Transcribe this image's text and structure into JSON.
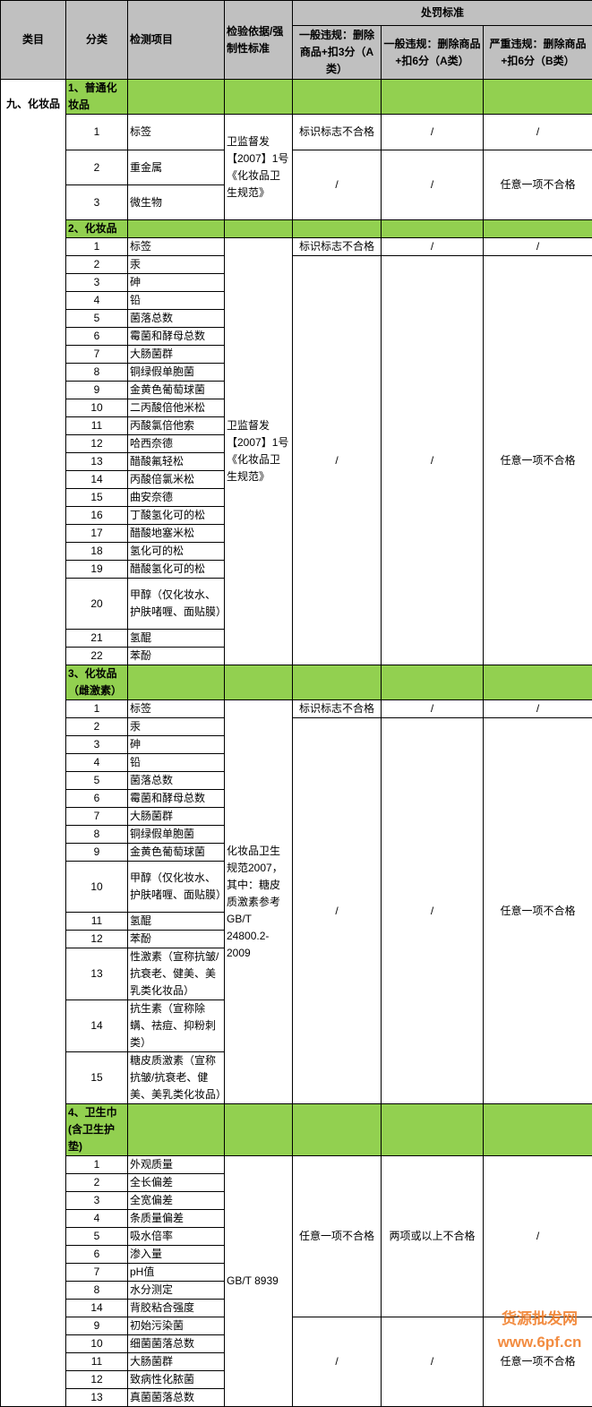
{
  "header": {
    "category": "类目",
    "subcategory": "分类",
    "item": "检测项目",
    "basis": "检验依据/强制性标准",
    "penalty": "处罚标准",
    "p1": "一般违规：删除商品+扣3分（A类）",
    "p2": "一般违规：删除商品+扣6分（A类）",
    "p3": "严重违规：删除商品+扣6分（B类）"
  },
  "category": "九、化妆品",
  "colors": {
    "section_green": "#92d050",
    "header_gray": "#c0c0c0"
  },
  "sections": [
    {
      "title": "1、普通化妆品",
      "basis": "卫监督发【2007】1号《化妆品卫生规范》",
      "items": [
        {
          "no": "1",
          "name": "标签"
        },
        {
          "no": "2",
          "name": "重金属"
        },
        {
          "no": "3",
          "name": "微生物"
        }
      ],
      "penalties": [
        {
          "rows": 1,
          "p1": "标识标志不合格",
          "p2": "/",
          "p3": "/"
        },
        {
          "rows": 2,
          "p1": "/",
          "p2": "/",
          "p3": "任意一项不合格"
        }
      ]
    },
    {
      "title": "2、化妆品",
      "basis": "卫监督发【2007】1号《化妆品卫生规范》",
      "items": [
        {
          "no": "1",
          "name": "标签"
        },
        {
          "no": "2",
          "name": "汞"
        },
        {
          "no": "3",
          "name": "砷"
        },
        {
          "no": "4",
          "name": "铅"
        },
        {
          "no": "5",
          "name": "菌落总数"
        },
        {
          "no": "6",
          "name": "霉菌和酵母总数"
        },
        {
          "no": "7",
          "name": "大肠菌群"
        },
        {
          "no": "8",
          "name": "铜绿假单胞菌"
        },
        {
          "no": "9",
          "name": "金黄色葡萄球菌"
        },
        {
          "no": "10",
          "name": "二丙酸倍他米松"
        },
        {
          "no": "11",
          "name": "丙酸氯倍他索"
        },
        {
          "no": "12",
          "name": "哈西奈德"
        },
        {
          "no": "13",
          "name": "醋酸氟轻松"
        },
        {
          "no": "14",
          "name": "丙酸倍氯米松"
        },
        {
          "no": "15",
          "name": "曲安奈德"
        },
        {
          "no": "16",
          "name": "丁酸氢化可的松"
        },
        {
          "no": "17",
          "name": "醋酸地塞米松"
        },
        {
          "no": "18",
          "name": "氢化可的松"
        },
        {
          "no": "19",
          "name": "醋酸氢化可的松"
        },
        {
          "no": "20",
          "name": "甲醇（仅化妆水、护肤啫喱、面贴膜）"
        },
        {
          "no": "21",
          "name": "氢醌"
        },
        {
          "no": "22",
          "name": "苯酚"
        }
      ],
      "penalties": [
        {
          "rows": 1,
          "p1": "标识标志不合格",
          "p2": "/",
          "p3": "/"
        },
        {
          "rows": 21,
          "p1": "/",
          "p2": "/",
          "p3": "任意一项不合格"
        }
      ]
    },
    {
      "title": "3、化妆品（雌激素）",
      "basis": "化妆品卫生规范2007，其中：糖皮质激素参考GB/T 24800.2-2009",
      "items": [
        {
          "no": "1",
          "name": "标签"
        },
        {
          "no": "2",
          "name": "汞"
        },
        {
          "no": "3",
          "name": "砷"
        },
        {
          "no": "4",
          "name": "铅"
        },
        {
          "no": "5",
          "name": "菌落总数"
        },
        {
          "no": "6",
          "name": "霉菌和酵母总数"
        },
        {
          "no": "7",
          "name": "大肠菌群"
        },
        {
          "no": "8",
          "name": "铜绿假单胞菌"
        },
        {
          "no": "9",
          "name": "金黄色葡萄球菌"
        },
        {
          "no": "10",
          "name": "甲醇（仅化妆水、护肤啫喱、面贴膜）"
        },
        {
          "no": "11",
          "name": "氢醌"
        },
        {
          "no": "12",
          "name": "苯酚"
        },
        {
          "no": "13",
          "name": "性激素（宣称抗皱/抗衰老、健美、美乳类化妆品）"
        },
        {
          "no": "14",
          "name": "抗生素（宣称除螨、祛痘、抑粉刺类）"
        },
        {
          "no": "15",
          "name": "糖皮质激素（宣称抗皱/抗衰老、健美、美乳类化妆品）"
        }
      ],
      "penalties": [
        {
          "rows": 1,
          "p1": "标识标志不合格",
          "p2": "/",
          "p3": "/"
        },
        {
          "rows": 14,
          "p1": "/",
          "p2": "/",
          "p3": "任意一项不合格"
        }
      ]
    },
    {
      "title": "4、卫生巾(含卫生护垫)",
      "basis": "GB/T 8939",
      "items": [
        {
          "no": "1",
          "name": "外观质量"
        },
        {
          "no": "2",
          "name": "全长偏差"
        },
        {
          "no": "3",
          "name": "全宽偏差"
        },
        {
          "no": "4",
          "name": "条质量偏差"
        },
        {
          "no": "5",
          "name": "吸水倍率"
        },
        {
          "no": "6",
          "name": "渗入量"
        },
        {
          "no": "7",
          "name": "pH值"
        },
        {
          "no": "8",
          "name": "水分测定"
        },
        {
          "no": "14",
          "name": "背胶粘合强度"
        },
        {
          "no": "9",
          "name": "初始污染菌"
        },
        {
          "no": "10",
          "name": "细菌菌落总数"
        },
        {
          "no": "11",
          "name": "大肠菌群"
        },
        {
          "no": "12",
          "name": "致病性化脓菌"
        },
        {
          "no": "13",
          "name": "真菌菌落总数"
        }
      ],
      "penalties": [
        {
          "rows": 9,
          "p1": "任意一项不合格",
          "p2": "两项或以上不合格",
          "p3": "/"
        },
        {
          "rows": 5,
          "p1": "/",
          "p2": "/",
          "p3": "任意一项不合格"
        }
      ]
    }
  ],
  "watermark": "货源批发网 www.6pf.cn"
}
